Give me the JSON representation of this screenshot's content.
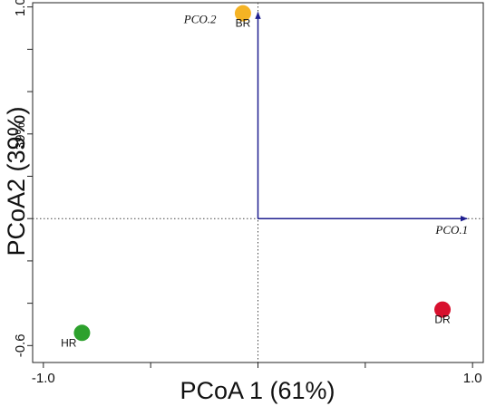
{
  "chart_data": {
    "type": "scatter",
    "xlabel": "PCoA 1 (61%)",
    "ylabel": "PCoA2 (39%)",
    "xlim": [
      -1.05,
      1.05
    ],
    "ylim": [
      -0.68,
      1.02
    ],
    "x_ticks": [
      -1.0,
      -0.5,
      0.0,
      0.5,
      1.0
    ],
    "x_tick_labels": [
      {
        "value": -1.0,
        "text": "-1.0"
      },
      {
        "value": 1.0,
        "text": "1.0"
      }
    ],
    "y_ticks": [
      -0.6,
      -0.4,
      -0.2,
      0.0,
      0.2,
      0.4,
      0.6,
      0.8,
      1.0
    ],
    "y_tick_labels": [
      {
        "value": 1.0,
        "text": "1.0"
      },
      {
        "value": 0.39,
        "text": "39%"
      },
      {
        "value": -0.6,
        "text": "-0.6"
      }
    ],
    "reference_lines": {
      "x": 0,
      "y": 0,
      "style": "dotted"
    },
    "points": [
      {
        "label": "BR",
        "x": -0.07,
        "y": 0.97,
        "color": "#F5B324"
      },
      {
        "label": "HR",
        "x": -0.82,
        "y": -0.54,
        "color": "#2DA12D"
      },
      {
        "label": "DR",
        "x": 0.86,
        "y": -0.43,
        "color": "#D8102E"
      }
    ],
    "vectors": [
      {
        "label": "PCO.1",
        "x": 1.0,
        "y": 0.0,
        "color": "#1F1F8F"
      },
      {
        "label": "PCO.2",
        "x": 0.0,
        "y": 1.0,
        "color": "#1F1F8F"
      }
    ],
    "grid": false,
    "legend": "none"
  }
}
